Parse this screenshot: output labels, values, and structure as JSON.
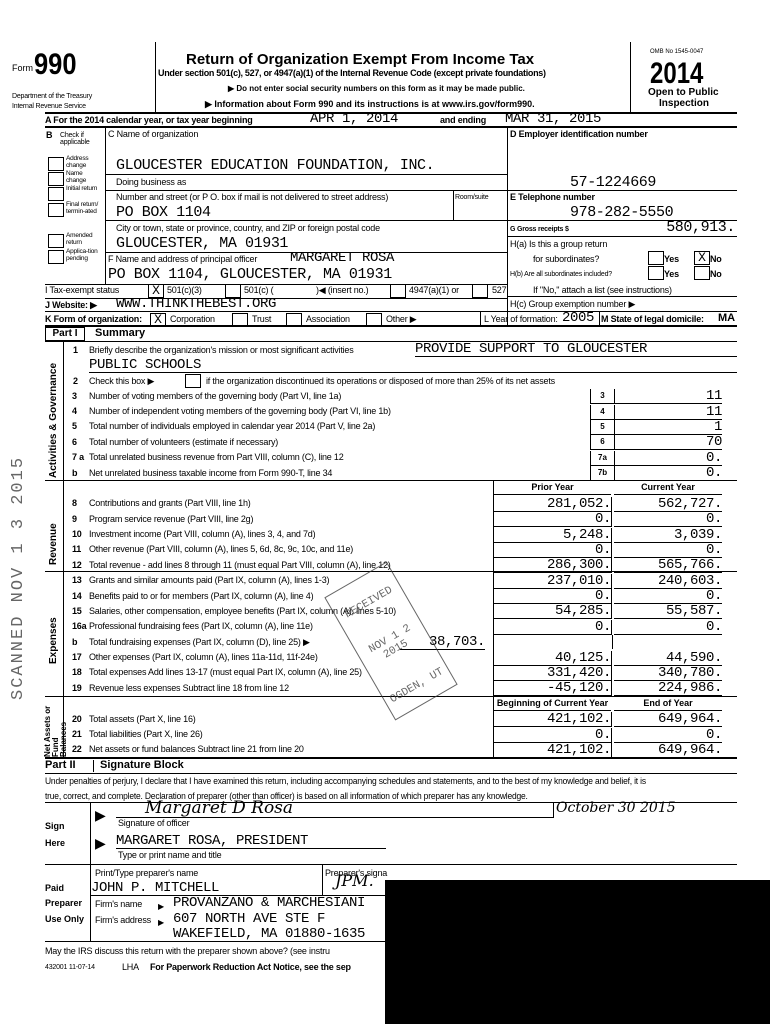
{
  "header": {
    "form_prefix": "Form",
    "form_number": "990",
    "dept_1": "Department of the Treasury",
    "dept_2": "Internal Revenue Service",
    "title": "Return of Organization Exempt From Income Tax",
    "subtitle": "Under section 501(c), 527, or 4947(a)(1) of the Internal Revenue Code (except private foundations)",
    "notice_1": "▶ Do not enter social security numbers on this form as it may be made public.",
    "notice_2": "▶ Information about Form 990 and its instructions is at www.irs.gov/form990.",
    "omb": "OMB No 1545-0047",
    "year": "2014",
    "open_1": "Open to Public",
    "open_2": "Inspection"
  },
  "line_a": {
    "label": "A For the 2014 calendar year, or tax year beginning",
    "begin": "APR 1, 2014",
    "end_label": "and ending",
    "end": "MAR 31, 2015"
  },
  "section_b": {
    "label_1": "B",
    "label_2": "Check if applicable",
    "checks": [
      {
        "label": "Address change",
        "checked": false
      },
      {
        "label": "Name change",
        "checked": false
      },
      {
        "label": "Initial return",
        "checked": false
      },
      {
        "label": "Final return/ termin-ated",
        "checked": false
      },
      {
        "label": "Amended return",
        "checked": false
      },
      {
        "label": "Applica-tion pending",
        "checked": false
      }
    ]
  },
  "section_c": {
    "name_label": "C Name of organization",
    "name": "GLOUCESTER EDUCATION FOUNDATION, INC.",
    "dba_label": "Doing business as",
    "street_label": "Number and street (or P O. box if mail is not delivered to street address)",
    "room_label": "Room/suite",
    "street": "PO BOX 1104",
    "city_label": "City or town, state or province, country, and ZIP or foreign postal code",
    "city": "GLOUCESTER, MA  01931",
    "officer_label": "F Name and address of principal officer",
    "officer_name": "MARGARET ROSA",
    "officer_address": "PO BOX 1104, GLOUCESTER, MA  01931"
  },
  "section_d": {
    "ein_label": "D Employer identification number",
    "ein": "57-1224669",
    "phone_label": "E Telephone number",
    "phone": "978-282-5550",
    "gross_label": "G Gross receipts $",
    "gross": "580,913.",
    "ha_label_1": "H(a) Is this a group return",
    "ha_label_2": "for subordinates?",
    "hb_label": "H(b) Are all subordinates included?",
    "yes": "Yes",
    "no": "No",
    "ha_answer": "No",
    "hb_note": "If \"No,\" attach a list  (see instructions)",
    "hc_label": "H(c) Group exemption number ▶"
  },
  "line_i": {
    "label": "I Tax-exempt status",
    "opt_1": "501(c)(3)",
    "opt_2": "501(c) (",
    "opt_2b": ")◀ (insert no.)",
    "opt_3": "4947(a)(1) or",
    "opt_4": "527",
    "checked": "501(c)(3)",
    "mark": "X"
  },
  "line_j": {
    "label": "J Website: ▶",
    "value": "WWW.THINKTHEBEST.ORG"
  },
  "line_k": {
    "label": "K Form of organization:",
    "opts": [
      "Corporation",
      "Trust",
      "Association",
      "Other ▶"
    ],
    "checked": "Corporation",
    "l_label": "L Year of formation:",
    "l_value": "2005",
    "m_label": "M State of legal domicile:",
    "m_value": "MA"
  },
  "part1": {
    "part": "Part I",
    "title": "Summary",
    "side_1": "Activities & Governance",
    "side_2": "Revenue",
    "side_3": "Expenses",
    "side_4": "Net Assets or Fund Balances",
    "mission_num": "1",
    "mission_label": "Briefly describe the organization's mission or most significant activities",
    "mission_1": "PROVIDE SUPPORT TO GLOUCESTER",
    "mission_2": "PUBLIC SCHOOLS",
    "line2_num": "2",
    "line2_a": "Check this box ▶",
    "line2_b": "if the organization discontinued its operations or disposed of more than 25% of its net assets",
    "gov_lines": [
      {
        "num": "3",
        "label": "Number of voting members of the governing body (Part VI, line 1a)",
        "ref": "3",
        "value": "11"
      },
      {
        "num": "4",
        "label": "Number of independent voting members of the governing body (Part VI, line 1b)",
        "ref": "4",
        "value": "11"
      },
      {
        "num": "5",
        "label": "Total number of individuals employed in calendar year 2014 (Part V, line 2a)",
        "ref": "5",
        "value": "1"
      },
      {
        "num": "6",
        "label": "Total number of volunteers (estimate if necessary)",
        "ref": "6",
        "value": "70"
      },
      {
        "num": "7 a",
        "label": "Total unrelated business revenue from Part VIII, column (C), line 12",
        "ref": "7a",
        "value": "0."
      },
      {
        "num": "b",
        "label": "Net unrelated business taxable income from Form 990-T, line 34",
        "ref": "7b",
        "value": "0."
      }
    ],
    "fin_header": {
      "prior": "Prior Year",
      "current": "Current Year"
    },
    "fin_lines": [
      {
        "num": "8",
        "label": "Contributions and grants (Part VIII, line 1h)",
        "prior": "281,052.",
        "current": "562,727."
      },
      {
        "num": "9",
        "label": "Program service revenue (Part VIII, line 2g)",
        "prior": "0.",
        "current": "0."
      },
      {
        "num": "10",
        "label": "Investment income (Part VIII, column (A), lines 3, 4, and 7d)",
        "prior": "5,248.",
        "current": "3,039."
      },
      {
        "num": "11",
        "label": "Other revenue (Part VIII, column (A), lines 5, 6d, 8c, 9c, 10c, and 11e)",
        "prior": "0.",
        "current": "0."
      },
      {
        "num": "12",
        "label": "Total revenue - add lines 8 through 11 (must equal Part VIII, column (A), line 12)",
        "prior": "286,300.",
        "current": "565,766."
      },
      {
        "num": "13",
        "label": "Grants and similar amounts paid (Part IX, column (A), lines 1-3)",
        "prior": "237,010.",
        "current": "240,603."
      },
      {
        "num": "14",
        "label": "Benefits paid to or for members (Part IX, column (A), line 4)",
        "prior": "0.",
        "current": "0."
      },
      {
        "num": "15",
        "label": "Salaries, other compensation, employee benefits (Part IX, column (A), lines 5-10)",
        "prior": "54,285.",
        "current": "55,587."
      },
      {
        "num": "16a",
        "label": "Professional fundraising fees (Part IX, column (A), line 11e)",
        "prior": "0.",
        "current": "0."
      },
      {
        "num": "b",
        "label": "Total fundraising expenses (Part IX, column (D), line 25) ▶",
        "mid": "38,703."
      },
      {
        "num": "17",
        "label": "Other expenses (Part IX, column (A), lines 11a-11d, 11f-24e)",
        "prior": "40,125.",
        "current": "44,590."
      },
      {
        "num": "18",
        "label": "Total expenses  Add lines 13-17 (must equal Part IX, column (A), line 25)",
        "prior": "331,420.",
        "current": "340,780."
      },
      {
        "num": "19",
        "label": "Revenue less expenses  Subtract line 18 from line 12",
        "prior": "-45,120.",
        "current": "224,986."
      }
    ],
    "net_header": {
      "prior": "Beginning of Current Year",
      "current": "End of Year"
    },
    "net_lines": [
      {
        "num": "20",
        "label": "Total assets (Part X, line 16)",
        "prior": "421,102.",
        "current": "649,964."
      },
      {
        "num": "21",
        "label": "Total liabilities (Part X, line 26)",
        "prior": "0.",
        "current": "0."
      },
      {
        "num": "22",
        "label": "Net assets or fund balances  Subtract line 21 from line 20",
        "prior": "421,102.",
        "current": "649,964."
      }
    ]
  },
  "part2": {
    "part": "Part II",
    "title": "Signature Block",
    "penalty_1": "Under penalties of perjury, I declare that I have examined this return, including accompanying schedules and statements, and to the best of my knowledge and belief, it is",
    "penalty_2": "true, correct, and complete. Declaration of preparer (other than officer) is based on all information of which preparer has any knowledge.",
    "sign": "Sign",
    "here": "Here",
    "signature": "Margaret D Rosa",
    "signature_label": "Signature of officer",
    "date": "October 30 2015",
    "officer": "MARGARET ROSA, PRESIDENT",
    "officer_label": "Type or print name and title",
    "paid": "Paid",
    "preparer": "Preparer",
    "use_only": "Use Only",
    "prep_name_label": "Print/Type preparer's name",
    "prep_sig_label": "Preparer's signa",
    "prep_sig": "JPM.",
    "prep_name": "JOHN P. MITCHELL",
    "firm_name_label": "Firm's name",
    "firm_name": "PROVANZANO & MARCHESIANI",
    "firm_addr_label": "Firm's address",
    "firm_addr_1": "607 NORTH AVE STE F",
    "firm_addr_2": "WAKEFIELD, MA 01880-1635",
    "discuss": "May the IRS discuss this return with the preparer shown above? (see instru",
    "footer_code": "432001 11-07-14",
    "footer_lha": "LHA",
    "footer_notice": "For Paperwork Reduction Act Notice, see the sep"
  },
  "stamps": {
    "scanned": "SCANNED NOV 1 3 2015",
    "received": [
      "RECEIVED",
      "NOV 1 2 2015",
      "OGDEN, UT"
    ]
  }
}
